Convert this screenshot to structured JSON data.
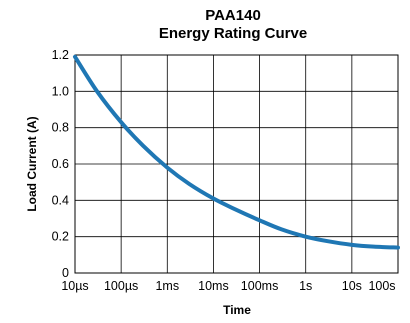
{
  "chart_data": {
    "type": "line",
    "title": "PAA140",
    "subtitle": "Energy Rating Curve",
    "xlabel": "Time",
    "ylabel": "Load Current (A)",
    "x_scale": "log",
    "x_ticks": [
      {
        "label": "10µs",
        "value": 1e-05
      },
      {
        "label": "100µs",
        "value": 0.0001
      },
      {
        "label": "1ms",
        "value": 0.001
      },
      {
        "label": "10ms",
        "value": 0.01
      },
      {
        "label": "100ms",
        "value": 0.1
      },
      {
        "label": "1s",
        "value": 1
      },
      {
        "label": "10s",
        "value": 10
      },
      {
        "label": "100s",
        "value": 100
      }
    ],
    "y_ticks": [
      "0",
      "0.2",
      "0.4",
      "0.6",
      "0.8",
      "1.0",
      "1.2"
    ],
    "xlim": [
      1e-05,
      100
    ],
    "ylim": [
      0,
      1.2
    ],
    "grid": true,
    "series": [
      {
        "color": "#1f77b4",
        "points": [
          {
            "x": 1e-05,
            "y": 1.19
          },
          {
            "x": 3e-05,
            "y": 1.0
          },
          {
            "x": 0.0001,
            "y": 0.83
          },
          {
            "x": 0.0003,
            "y": 0.7
          },
          {
            "x": 0.001,
            "y": 0.58
          },
          {
            "x": 0.003,
            "y": 0.49
          },
          {
            "x": 0.01,
            "y": 0.41
          },
          {
            "x": 0.03,
            "y": 0.35
          },
          {
            "x": 0.1,
            "y": 0.29
          },
          {
            "x": 0.3,
            "y": 0.24
          },
          {
            "x": 1,
            "y": 0.2
          },
          {
            "x": 3,
            "y": 0.175
          },
          {
            "x": 10,
            "y": 0.155
          },
          {
            "x": 30,
            "y": 0.145
          },
          {
            "x": 100,
            "y": 0.14
          }
        ]
      }
    ]
  }
}
